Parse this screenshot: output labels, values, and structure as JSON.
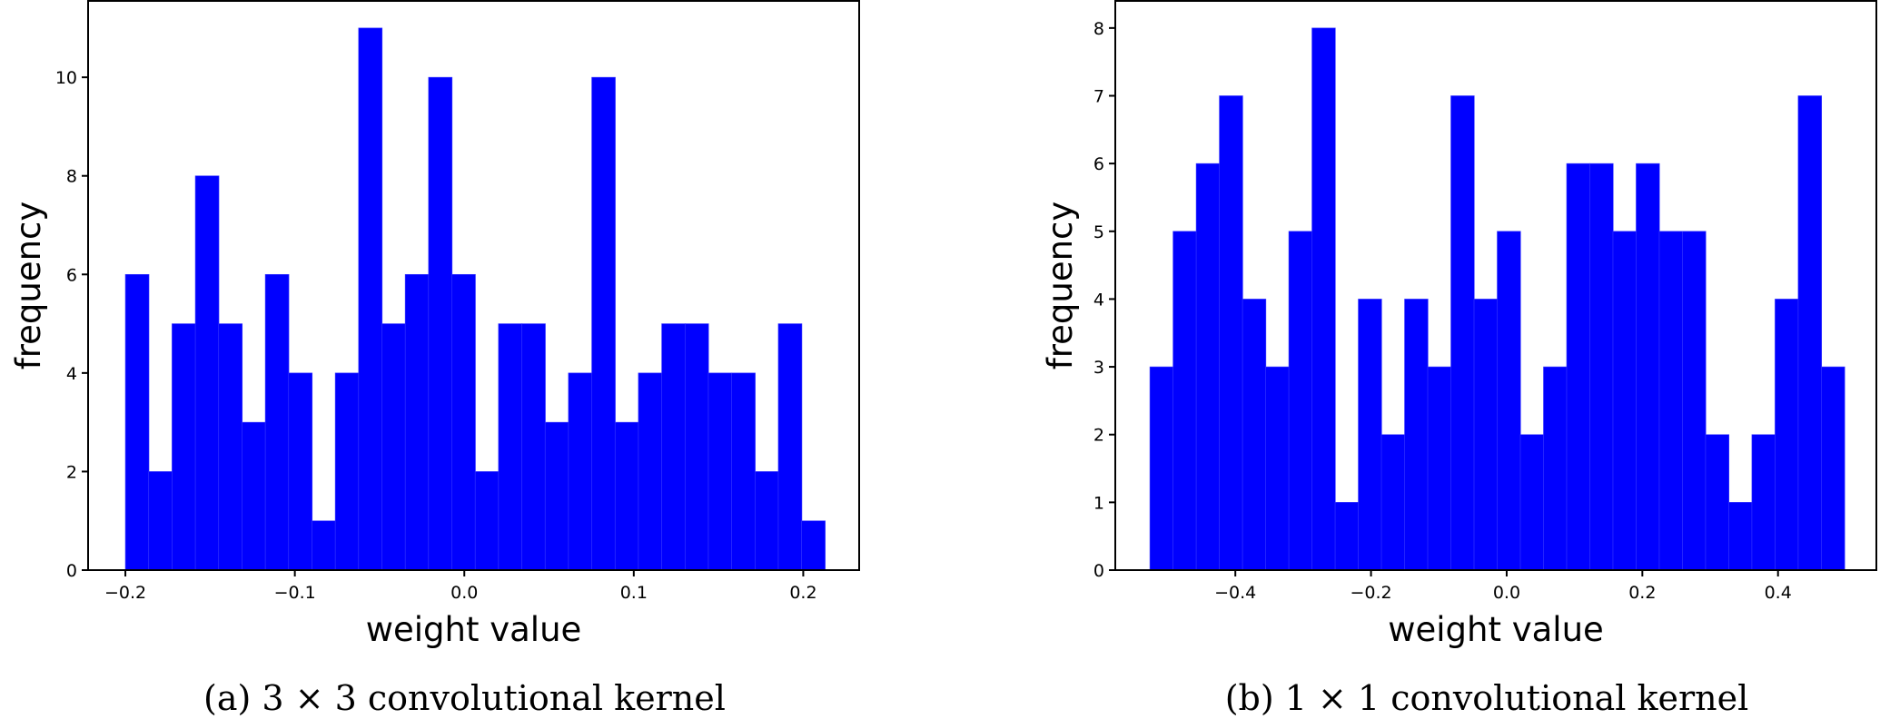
{
  "chart_data": [
    {
      "type": "bar",
      "subtype": "histogram",
      "caption": "(a) 3 × 3 convolutional kernel",
      "xlabel": "weight value",
      "ylabel": "frequency",
      "bin_start": -0.2,
      "bin_end": 0.2128,
      "values": [
        6,
        2,
        5,
        8,
        5,
        3,
        6,
        4,
        1,
        4,
        11,
        5,
        6,
        10,
        6,
        2,
        5,
        5,
        3,
        4,
        10,
        3,
        4,
        5,
        5,
        4,
        4,
        2,
        5,
        1
      ],
      "xlim": [
        -0.222,
        0.233
      ],
      "ylim": [
        0,
        11.55
      ],
      "xticks": [
        -0.2,
        -0.1,
        0.0,
        0.1,
        0.2
      ],
      "xtick_labels": [
        "−0.2",
        "−0.1",
        "0.0",
        "0.1",
        "0.2"
      ],
      "yticks": [
        0,
        2,
        4,
        6,
        8,
        10
      ],
      "ytick_labels": [
        "0",
        "2",
        "4",
        "6",
        "8",
        "10"
      ],
      "color": "#0000ff",
      "grid": false
    },
    {
      "type": "bar",
      "subtype": "histogram",
      "caption": "(b) 1 × 1 convolutional kernel",
      "xlabel": "weight value",
      "ylabel": "frequency",
      "bin_start": -0.526,
      "bin_end": 0.498,
      "values": [
        3,
        5,
        6,
        7,
        4,
        3,
        5,
        8,
        1,
        4,
        2,
        4,
        3,
        7,
        4,
        5,
        2,
        3,
        6,
        6,
        5,
        6,
        5,
        5,
        2,
        1,
        2,
        4,
        7,
        3
      ],
      "xlim": [
        -0.577,
        0.545
      ],
      "ylim": [
        0,
        8.4
      ],
      "xticks": [
        -0.4,
        -0.2,
        0.0,
        0.2,
        0.4
      ],
      "xtick_labels": [
        "−0.4",
        "−0.2",
        "0.0",
        "0.2",
        "0.4"
      ],
      "yticks": [
        0,
        1,
        2,
        3,
        4,
        5,
        6,
        7,
        8
      ],
      "ytick_labels": [
        "0",
        "1",
        "2",
        "3",
        "4",
        "5",
        "6",
        "7",
        "8"
      ],
      "color": "#0000ff",
      "grid": false
    }
  ]
}
